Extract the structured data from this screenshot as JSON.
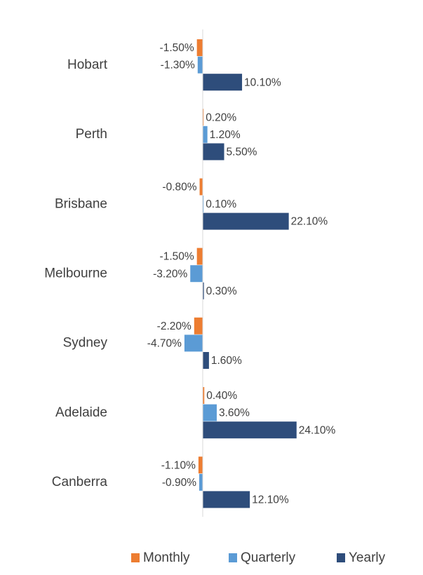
{
  "chart_data": {
    "type": "bar",
    "orientation": "horizontal",
    "categories": [
      "Hobart",
      "Perth",
      "Brisbane",
      "Melbourne",
      "Sydney",
      "Adelaide",
      "Canberra"
    ],
    "series": [
      {
        "name": "Monthly",
        "color": "#ED7D31",
        "values": [
          -1.5,
          0.2,
          -0.8,
          -1.5,
          -2.2,
          0.4,
          -1.1
        ],
        "labels": [
          "-1.50%",
          "0.20%",
          "-0.80%",
          "-1.50%",
          "-2.20%",
          "0.40%",
          "-1.10%"
        ]
      },
      {
        "name": "Quarterly",
        "color": "#5B9BD5",
        "values": [
          -1.3,
          1.2,
          0.1,
          -3.2,
          -4.7,
          3.6,
          -0.9
        ],
        "labels": [
          "-1.30%",
          "1.20%",
          "0.10%",
          "-3.20%",
          "-4.70%",
          "3.60%",
          "-0.90%"
        ]
      },
      {
        "name": "Yearly",
        "color": "#2E4D7B",
        "values": [
          10.1,
          5.5,
          22.1,
          0.3,
          1.6,
          24.1,
          12.1
        ],
        "labels": [
          "10.10%",
          "5.50%",
          "22.10%",
          "0.30%",
          "1.60%",
          "24.10%",
          "12.10%"
        ]
      }
    ],
    "xlim": [
      -5,
      25
    ],
    "grid": false,
    "legend_position": "bottom"
  }
}
